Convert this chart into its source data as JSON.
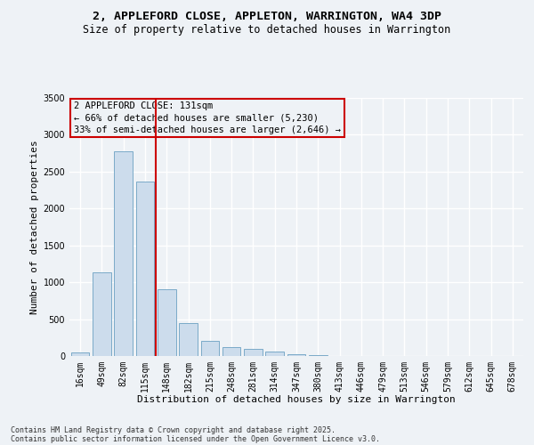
{
  "title1": "2, APPLEFORD CLOSE, APPLETON, WARRINGTON, WA4 3DP",
  "title2": "Size of property relative to detached houses in Warrington",
  "xlabel": "Distribution of detached houses by size in Warrington",
  "ylabel": "Number of detached properties",
  "categories": [
    "16sqm",
    "49sqm",
    "82sqm",
    "115sqm",
    "148sqm",
    "182sqm",
    "215sqm",
    "248sqm",
    "281sqm",
    "314sqm",
    "347sqm",
    "380sqm",
    "413sqm",
    "446sqm",
    "479sqm",
    "513sqm",
    "546sqm",
    "579sqm",
    "612sqm",
    "645sqm",
    "678sqm"
  ],
  "values": [
    50,
    1130,
    2780,
    2360,
    900,
    450,
    200,
    120,
    95,
    65,
    30,
    15,
    5,
    2,
    1,
    0,
    0,
    0,
    0,
    0,
    0
  ],
  "bar_color": "#ccdcec",
  "bar_edge_color": "#7aaac8",
  "vline_x": 3.5,
  "vline_color": "#cc0000",
  "annotation_title": "2 APPLEFORD CLOSE: 131sqm",
  "annotation_line1": "← 66% of detached houses are smaller (5,230)",
  "annotation_line2": "33% of semi-detached houses are larger (2,646) →",
  "annotation_box_color": "#cc0000",
  "footnote1": "Contains HM Land Registry data © Crown copyright and database right 2025.",
  "footnote2": "Contains public sector information licensed under the Open Government Licence v3.0.",
  "ylim": [
    0,
    3500
  ],
  "yticks": [
    0,
    500,
    1000,
    1500,
    2000,
    2500,
    3000,
    3500
  ],
  "background_color": "#eef2f6",
  "grid_color": "#ffffff",
  "title_fontsize": 9.5,
  "subtitle_fontsize": 8.5,
  "axis_fontsize": 8,
  "tick_fontsize": 7,
  "annot_fontsize": 7.5,
  "footnote_fontsize": 6
}
